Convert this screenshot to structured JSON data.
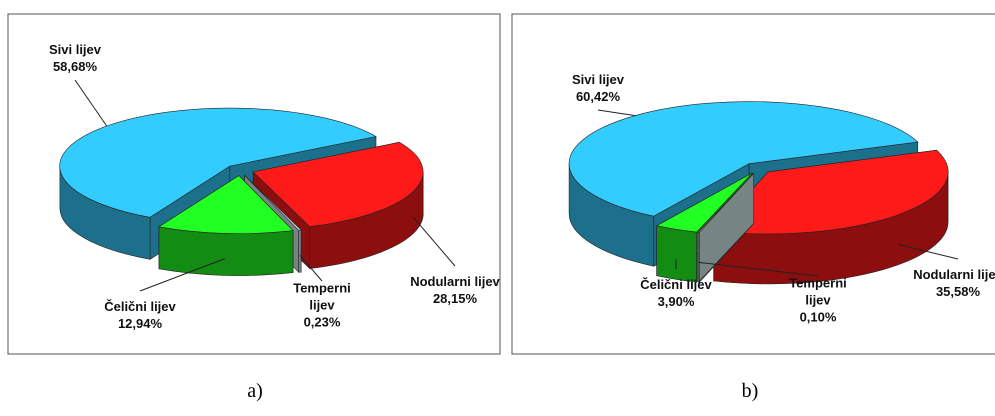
{
  "chart_data": [
    {
      "type": "pie",
      "caption": "a)",
      "categories": [
        "Sivi lijev",
        "Nodularni lijev",
        "Temperni lijev",
        "Čelični lijev"
      ],
      "values": [
        58.68,
        28.15,
        0.23,
        12.94
      ],
      "value_labels": [
        "58,68%",
        "28,15%",
        "0,23%",
        "12,94%"
      ],
      "colors": [
        "#33ccff",
        "#ff1a1a",
        "#d8f0f0",
        "#22ff22"
      ]
    },
    {
      "type": "pie",
      "caption": "b)",
      "categories": [
        "Sivi lijev",
        "Nodularni lijev",
        "Temperni lijev",
        "Čelični lijev"
      ],
      "values": [
        60.42,
        35.58,
        0.1,
        3.9
      ],
      "value_labels": [
        "60,42%",
        "35,58%",
        "0,10%",
        "3,90%"
      ],
      "colors": [
        "#33ccff",
        "#ff1a1a",
        "#d8f0f0",
        "#22ff22"
      ]
    }
  ]
}
